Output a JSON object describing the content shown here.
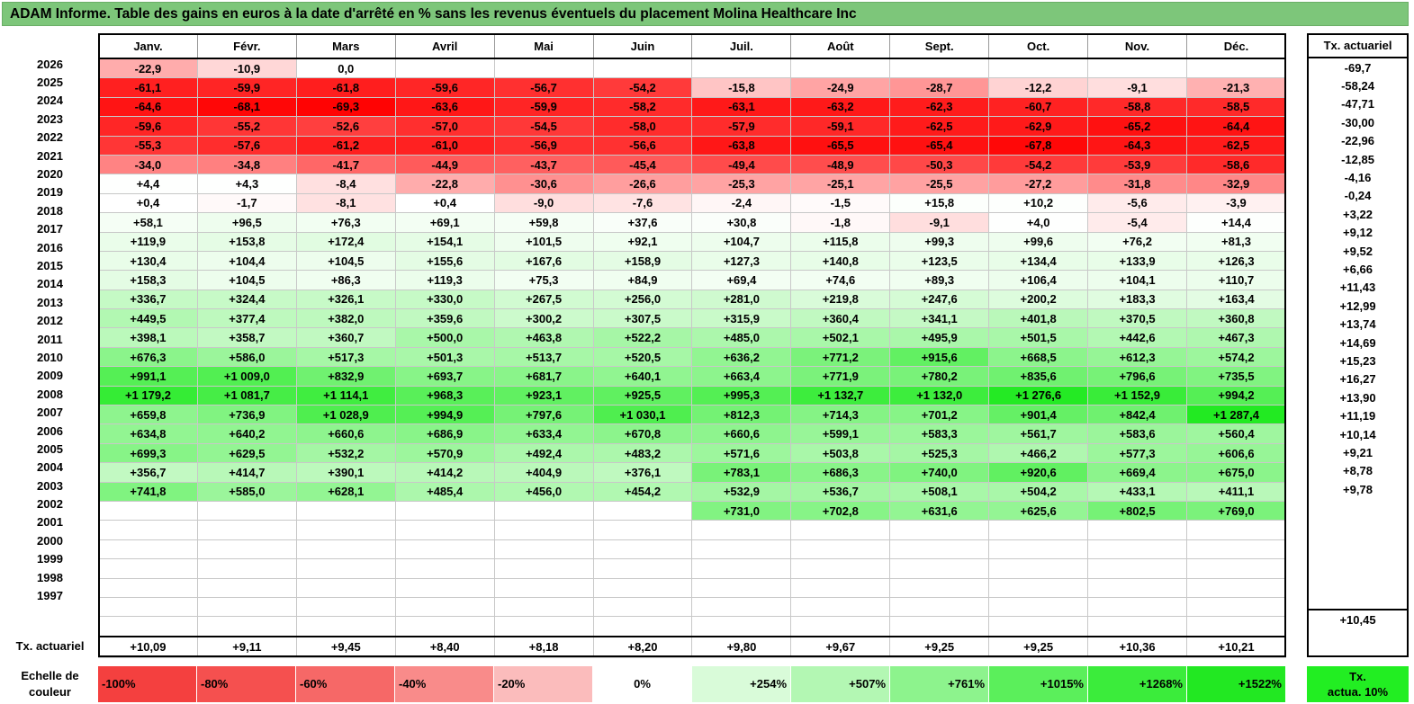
{
  "title": "ADAM Informe. Table des gains en euros à la date d'arrêté en % sans les revenus éventuels du placement Molina Healthcare Inc",
  "months": [
    "Janv.",
    "Févr.",
    "Mars",
    "Avril",
    "Mai",
    "Juin",
    "Juil.",
    "Août",
    "Sept.",
    "Oct.",
    "Nov.",
    "Déc."
  ],
  "right_header": "Tx. actuariel",
  "rows": [
    {
      "year": "2026",
      "cells": [
        "-22,9",
        "-10,9",
        "0,0",
        "",
        "",
        "",
        "",
        "",
        "",
        "",
        "",
        ""
      ],
      "rate": "-69,7"
    },
    {
      "year": "2025",
      "cells": [
        "-61,1",
        "-59,9",
        "-61,8",
        "-59,6",
        "-56,7",
        "-54,2",
        "-15,8",
        "-24,9",
        "-28,7",
        "-12,2",
        "-9,1",
        "-21,3"
      ],
      "rate": "-58,24"
    },
    {
      "year": "2024",
      "cells": [
        "-64,6",
        "-68,1",
        "-69,3",
        "-63,6",
        "-59,9",
        "-58,2",
        "-63,1",
        "-63,2",
        "-62,3",
        "-60,7",
        "-58,8",
        "-58,5"
      ],
      "rate": "-47,71"
    },
    {
      "year": "2023",
      "cells": [
        "-59,6",
        "-55,2",
        "-52,6",
        "-57,0",
        "-54,5",
        "-58,0",
        "-57,9",
        "-59,1",
        "-62,5",
        "-62,9",
        "-65,2",
        "-64,4"
      ],
      "rate": "-30,00"
    },
    {
      "year": "2022",
      "cells": [
        "-55,3",
        "-57,6",
        "-61,2",
        "-61,0",
        "-56,9",
        "-56,6",
        "-63,8",
        "-65,5",
        "-65,4",
        "-67,8",
        "-64,3",
        "-62,5"
      ],
      "rate": "-22,96"
    },
    {
      "year": "2021",
      "cells": [
        "-34,0",
        "-34,8",
        "-41,7",
        "-44,9",
        "-43,7",
        "-45,4",
        "-49,4",
        "-48,9",
        "-50,3",
        "-54,2",
        "-53,9",
        "-58,6"
      ],
      "rate": "-12,85"
    },
    {
      "year": "2020",
      "cells": [
        "+4,4",
        "+4,3",
        "-8,4",
        "-22,8",
        "-30,6",
        "-26,6",
        "-25,3",
        "-25,1",
        "-25,5",
        "-27,2",
        "-31,8",
        "-32,9"
      ],
      "rate": "-4,16"
    },
    {
      "year": "2019",
      "cells": [
        "+0,4",
        "-1,7",
        "-8,1",
        "+0,4",
        "-9,0",
        "-7,6",
        "-2,4",
        "-1,5",
        "+15,8",
        "+10,2",
        "-5,6",
        "-3,9"
      ],
      "rate": "-0,24"
    },
    {
      "year": "2018",
      "cells": [
        "+58,1",
        "+96,5",
        "+76,3",
        "+69,1",
        "+59,8",
        "+37,6",
        "+30,8",
        "-1,8",
        "-9,1",
        "+4,0",
        "-5,4",
        "+14,4"
      ],
      "rate": "+3,22"
    },
    {
      "year": "2017",
      "cells": [
        "+119,9",
        "+153,8",
        "+172,4",
        "+154,1",
        "+101,5",
        "+92,1",
        "+104,7",
        "+115,8",
        "+99,3",
        "+99,6",
        "+76,2",
        "+81,3"
      ],
      "rate": "+9,12"
    },
    {
      "year": "2016",
      "cells": [
        "+130,4",
        "+104,4",
        "+104,5",
        "+155,6",
        "+167,6",
        "+158,9",
        "+127,3",
        "+140,8",
        "+123,5",
        "+134,4",
        "+133,9",
        "+126,3"
      ],
      "rate": "+9,52"
    },
    {
      "year": "2015",
      "cells": [
        "+158,3",
        "+104,5",
        "+86,3",
        "+119,3",
        "+75,3",
        "+84,9",
        "+69,4",
        "+74,6",
        "+89,3",
        "+106,4",
        "+104,1",
        "+110,7"
      ],
      "rate": "+6,66"
    },
    {
      "year": "2014",
      "cells": [
        "+336,7",
        "+324,4",
        "+326,1",
        "+330,0",
        "+267,5",
        "+256,0",
        "+281,0",
        "+219,8",
        "+247,6",
        "+200,2",
        "+183,3",
        "+163,4"
      ],
      "rate": "+11,43"
    },
    {
      "year": "2013",
      "cells": [
        "+449,5",
        "+377,4",
        "+382,0",
        "+359,6",
        "+300,2",
        "+307,5",
        "+315,9",
        "+360,4",
        "+341,1",
        "+401,8",
        "+370,5",
        "+360,8"
      ],
      "rate": "+12,99"
    },
    {
      "year": "2012",
      "cells": [
        "+398,1",
        "+358,7",
        "+360,7",
        "+500,0",
        "+463,8",
        "+522,2",
        "+485,0",
        "+502,1",
        "+495,9",
        "+501,5",
        "+442,6",
        "+467,3"
      ],
      "rate": "+13,74"
    },
    {
      "year": "2011",
      "cells": [
        "+676,3",
        "+586,0",
        "+517,3",
        "+501,3",
        "+513,7",
        "+520,5",
        "+636,2",
        "+771,2",
        "+915,6",
        "+668,5",
        "+612,3",
        "+574,2"
      ],
      "rate": "+14,69"
    },
    {
      "year": "2010",
      "cells": [
        "+991,1",
        "+1 009,0",
        "+832,9",
        "+693,7",
        "+681,7",
        "+640,1",
        "+663,4",
        "+771,9",
        "+780,2",
        "+835,6",
        "+796,6",
        "+735,5"
      ],
      "rate": "+15,23"
    },
    {
      "year": "2009",
      "cells": [
        "+1 179,2",
        "+1 081,7",
        "+1 114,1",
        "+968,3",
        "+923,1",
        "+925,5",
        "+995,3",
        "+1 132,7",
        "+1 132,0",
        "+1 276,6",
        "+1 152,9",
        "+994,2"
      ],
      "rate": "+16,27"
    },
    {
      "year": "2008",
      "cells": [
        "+659,8",
        "+736,9",
        "+1 028,9",
        "+994,9",
        "+797,6",
        "+1 030,1",
        "+812,3",
        "+714,3",
        "+701,2",
        "+901,4",
        "+842,4",
        "+1 287,4"
      ],
      "rate": "+13,90"
    },
    {
      "year": "2007",
      "cells": [
        "+634,8",
        "+640,2",
        "+660,6",
        "+686,9",
        "+633,4",
        "+670,8",
        "+660,6",
        "+599,1",
        "+583,3",
        "+561,7",
        "+583,6",
        "+560,4"
      ],
      "rate": "+11,19"
    },
    {
      "year": "2006",
      "cells": [
        "+699,3",
        "+629,5",
        "+532,2",
        "+570,9",
        "+492,4",
        "+483,2",
        "+571,6",
        "+503,8",
        "+525,3",
        "+466,2",
        "+577,3",
        "+606,6"
      ],
      "rate": "+10,14"
    },
    {
      "year": "2005",
      "cells": [
        "+356,7",
        "+414,7",
        "+390,1",
        "+414,2",
        "+404,9",
        "+376,1",
        "+783,1",
        "+686,3",
        "+740,0",
        "+920,6",
        "+669,4",
        "+675,0"
      ],
      "rate": "+9,21"
    },
    {
      "year": "2004",
      "cells": [
        "+741,8",
        "+585,0",
        "+628,1",
        "+485,4",
        "+456,0",
        "+454,2",
        "+532,9",
        "+536,7",
        "+508,1",
        "+504,2",
        "+433,1",
        "+411,1"
      ],
      "rate": "+8,78"
    },
    {
      "year": "2003",
      "cells": [
        "",
        "",
        "",
        "",
        "",
        "",
        "+731,0",
        "+702,8",
        "+631,6",
        "+625,6",
        "+802,5",
        "+769,0"
      ],
      "rate": "+9,78"
    },
    {
      "year": "2002",
      "cells": [
        "",
        "",
        "",
        "",
        "",
        "",
        "",
        "",
        "",
        "",
        "",
        ""
      ],
      "rate": ""
    },
    {
      "year": "2001",
      "cells": [
        "",
        "",
        "",
        "",
        "",
        "",
        "",
        "",
        "",
        "",
        "",
        ""
      ],
      "rate": ""
    },
    {
      "year": "2000",
      "cells": [
        "",
        "",
        "",
        "",
        "",
        "",
        "",
        "",
        "",
        "",
        "",
        ""
      ],
      "rate": ""
    },
    {
      "year": "1999",
      "cells": [
        "",
        "",
        "",
        "",
        "",
        "",
        "",
        "",
        "",
        "",
        "",
        ""
      ],
      "rate": ""
    },
    {
      "year": "1998",
      "cells": [
        "",
        "",
        "",
        "",
        "",
        "",
        "",
        "",
        "",
        "",
        "",
        ""
      ],
      "rate": ""
    },
    {
      "year": "1997",
      "cells": [
        "",
        "",
        "",
        "",
        "",
        "",
        "",
        "",
        "",
        "",
        "",
        ""
      ],
      "rate": ""
    }
  ],
  "avg_label": "Tx. actuariel",
  "avg_cells": [
    "+10,09",
    "+9,11",
    "+9,45",
    "+8,40",
    "+8,18",
    "+8,20",
    "+9,80",
    "+9,67",
    "+9,25",
    "+9,25",
    "+10,36",
    "+10,21"
  ],
  "avg_rate": "+10,45",
  "scale_label_line1": "Echelle de",
  "scale_label_line2": "couleur",
  "scale": [
    {
      "label": "-100%",
      "color": "#f4403f",
      "kind": "neg"
    },
    {
      "label": "-80%",
      "color": "#f5504f",
      "kind": "neg"
    },
    {
      "label": "-60%",
      "color": "#f66867",
      "kind": "neg"
    },
    {
      "label": "-40%",
      "color": "#f98b8a",
      "kind": "neg"
    },
    {
      "label": "-20%",
      "color": "#fbbcbc",
      "kind": "neg"
    },
    {
      "label": "0%",
      "color": "#ffffff",
      "kind": "zero"
    },
    {
      "label": "+254%",
      "color": "#d9fbd9",
      "kind": "pos"
    },
    {
      "label": "+507%",
      "color": "#b3f7b3",
      "kind": "pos"
    },
    {
      "label": "+761%",
      "color": "#8df38d",
      "kind": "pos"
    },
    {
      "label": "+1015%",
      "color": "#5bef5b",
      "kind": "pos"
    },
    {
      "label": "+1268%",
      "color": "#3bec3b",
      "kind": "pos"
    },
    {
      "label": "+1522%",
      "color": "#22e822",
      "kind": "pos"
    }
  ],
  "taux_box_line1": "Tx.",
  "taux_box_line2": "actua. 10%",
  "colors": {
    "title_bg": "#7dc67a",
    "neg_max": "#ff0000",
    "pos_max": "#22ee22",
    "taux_box": "#22ee22"
  }
}
